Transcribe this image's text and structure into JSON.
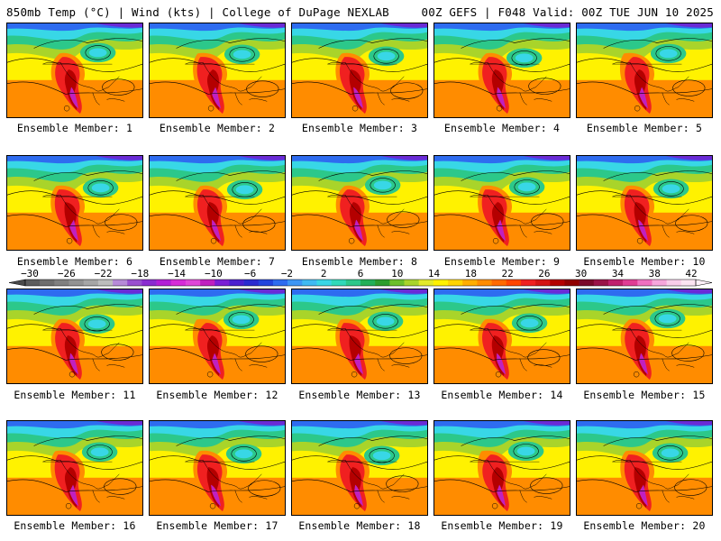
{
  "header": {
    "title_left": "850mb Temp (°C) | Wind (kts) | College of DuPage NEXLAB",
    "title_right": "00Z GEFS | F048 Valid: 00Z TUE JUN 10 2025"
  },
  "panels": [
    {
      "label": "Ensemble Member: 1"
    },
    {
      "label": "Ensemble Member: 2"
    },
    {
      "label": "Ensemble Member: 3"
    },
    {
      "label": "Ensemble Member: 4"
    },
    {
      "label": "Ensemble Member: 5"
    },
    {
      "label": "Ensemble Member: 6"
    },
    {
      "label": "Ensemble Member: 7"
    },
    {
      "label": "Ensemble Member: 8"
    },
    {
      "label": "Ensemble Member: 9"
    },
    {
      "label": "Ensemble Member: 10"
    },
    {
      "label": "Ensemble Member: 11"
    },
    {
      "label": "Ensemble Member: 12"
    },
    {
      "label": "Ensemble Member: 13"
    },
    {
      "label": "Ensemble Member: 14"
    },
    {
      "label": "Ensemble Member: 15"
    },
    {
      "label": "Ensemble Member: 16"
    },
    {
      "label": "Ensemble Member: 17"
    },
    {
      "label": "Ensemble Member: 18"
    },
    {
      "label": "Ensemble Member: 19"
    },
    {
      "label": "Ensemble Member: 20"
    }
  ],
  "colorbar": {
    "tick_labels": [
      "−30",
      "−26",
      "−22",
      "−18",
      "−14",
      "−10",
      "−6",
      "−2",
      "2",
      "6",
      "10",
      "14",
      "18",
      "22",
      "26",
      "30",
      "34",
      "38",
      "42"
    ],
    "colors": [
      "#5c5c5c",
      "#6e6e6e",
      "#808080",
      "#939393",
      "#a6a6a6",
      "#bdbdbd",
      "#b78ad8",
      "#9a4fd0",
      "#8a2bd0",
      "#b21fd6",
      "#d62bd8",
      "#e046d8",
      "#c020c0",
      "#7a1fd6",
      "#4b1fcf",
      "#2a2ad0",
      "#2244dd",
      "#2e6cf0",
      "#3d96f5",
      "#3fbaf3",
      "#38d7e6",
      "#30d9b9",
      "#2cc88a",
      "#22b058",
      "#2d9d2d",
      "#6cbf2a",
      "#a9d42a",
      "#e3ea2a",
      "#fff200",
      "#ffd400",
      "#ffae00",
      "#ff8c00",
      "#ff6a00",
      "#ff4500",
      "#f02020",
      "#d41414",
      "#b40000",
      "#900000",
      "#7a0a2a",
      "#9a1448",
      "#c0206e",
      "#e03c94",
      "#f070c0",
      "#f6a6dc",
      "#f9cdea",
      "#fbe4f2"
    ]
  },
  "map_colors": {
    "north": "#6a2bd6",
    "cold": "#2e6cf0",
    "cool": "#38d7e6",
    "mild": "#2cc88a",
    "temperate": "#a9d42a",
    "warm": "#fff200",
    "hot": "#ff8c00",
    "very_hot": "#f02020",
    "extreme": "#b40000",
    "peak": "#c020c0"
  }
}
